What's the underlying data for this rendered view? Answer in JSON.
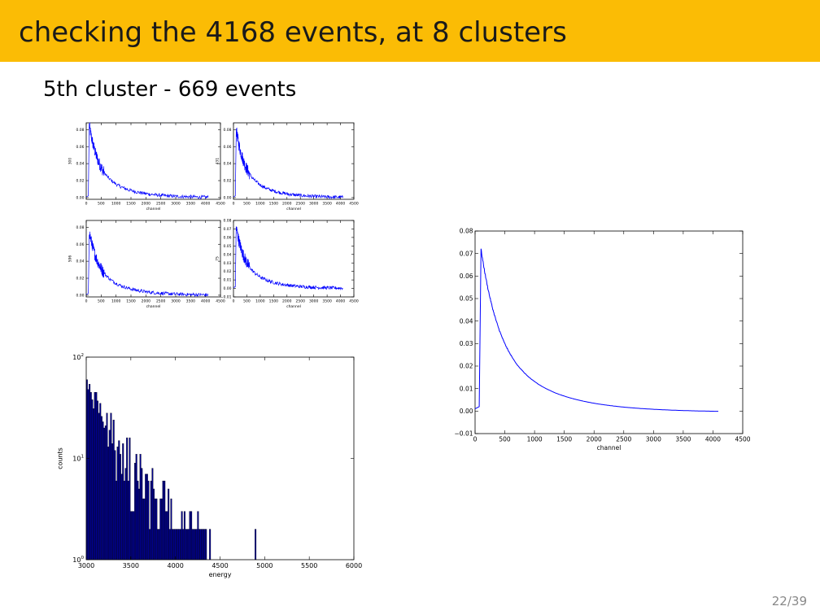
{
  "slide": {
    "title": "checking the 4168 events, at 8 clusters",
    "subtitle": "5th cluster - 669 events",
    "page_number": "22/39"
  },
  "colors": {
    "header": "#fbbc05",
    "trace": "#0000ff",
    "bar": "#00008b"
  },
  "chart_data": [
    {
      "type": "line",
      "panel": "small-top-left",
      "xlabel": "channel",
      "ylabel": "300",
      "xlim": [
        0,
        4500
      ],
      "ylim": [
        -0.002,
        0.088
      ],
      "xticks": [
        0,
        500,
        1000,
        1500,
        2000,
        2500,
        3000,
        3500,
        4000,
        4500
      ],
      "xtick_labels": [
        "0",
        "500",
        "1000",
        "1500",
        "2000",
        "2500",
        "3000",
        "3500",
        "4000",
        "4500"
      ],
      "yticks": [
        0.0,
        0.02,
        0.04,
        0.06,
        0.08
      ],
      "ytick_labels": [
        "0.00",
        "0.02",
        "0.04",
        "0.06",
        "0.08"
      ],
      "series": [
        {
          "peak": 0.085,
          "peak_x": 100,
          "end_x": 4100,
          "end_y": 0.0
        }
      ]
    },
    {
      "type": "line",
      "panel": "small-top-right",
      "xlabel": "channel",
      "ylabel": "431",
      "xlim": [
        0,
        4500
      ],
      "ylim": [
        -0.002,
        0.088
      ],
      "xticks": [
        0,
        500,
        1000,
        1500,
        2000,
        2500,
        3000,
        3500,
        4000,
        4500
      ],
      "xtick_labels": [
        "0",
        "500",
        "1000",
        "1500",
        "2000",
        "2500",
        "3000",
        "3500",
        "4000",
        "4500"
      ],
      "yticks": [
        0.0,
        0.02,
        0.04,
        0.06,
        0.08
      ],
      "ytick_labels": [
        "0.00",
        "0.02",
        "0.04",
        "0.06",
        "0.08"
      ],
      "series": [
        {
          "peak": 0.08,
          "peak_x": 100,
          "end_x": 4100,
          "end_y": 0.0
        }
      ]
    },
    {
      "type": "line",
      "panel": "small-bottom-left",
      "xlabel": "channel",
      "ylabel": "596",
      "xlim": [
        0,
        4500
      ],
      "ylim": [
        -0.002,
        0.088
      ],
      "xticks": [
        0,
        500,
        1000,
        1500,
        2000,
        2500,
        3000,
        3500,
        4000,
        4500
      ],
      "xtick_labels": [
        "0",
        "500",
        "1000",
        "1500",
        "2000",
        "2500",
        "3000",
        "3500",
        "4000",
        "4500"
      ],
      "yticks": [
        0.0,
        0.02,
        0.04,
        0.06,
        0.08
      ],
      "ytick_labels": [
        "0.00",
        "0.02",
        "0.04",
        "0.06",
        "0.08"
      ],
      "series": [
        {
          "peak": 0.075,
          "peak_x": 100,
          "end_x": 4100,
          "end_y": 0.0
        }
      ]
    },
    {
      "type": "line",
      "panel": "small-bottom-right",
      "xlabel": "channel",
      "ylabel": "75",
      "xlim": [
        0,
        4500
      ],
      "ylim": [
        -0.01,
        0.08
      ],
      "xticks": [
        0,
        500,
        1000,
        1500,
        2000,
        2500,
        3000,
        3500,
        4000,
        4500
      ],
      "xtick_labels": [
        "0",
        "500",
        "1000",
        "1500",
        "2000",
        "2500",
        "3000",
        "3500",
        "4000",
        "4500"
      ],
      "yticks": [
        -0.01,
        0.0,
        0.01,
        0.02,
        0.03,
        0.04,
        0.05,
        0.06,
        0.07,
        0.08
      ],
      "ytick_labels": [
        "−0.01",
        "0.00",
        "0.01",
        "0.02",
        "0.03",
        "0.04",
        "0.05",
        "0.06",
        "0.07",
        "0.08"
      ],
      "series": [
        {
          "peak": 0.072,
          "peak_x": 100,
          "end_x": 4100,
          "end_y": 0.0
        }
      ]
    },
    {
      "type": "bar",
      "panel": "histogram",
      "xlabel": "energy",
      "ylabel": "counts",
      "xlim": [
        3000,
        6000
      ],
      "ylim": [
        1,
        100
      ],
      "yscale": "log",
      "xticks": [
        3000,
        3500,
        4000,
        4500,
        5000,
        5500,
        6000
      ],
      "xtick_labels": [
        "3000",
        "3500",
        "4000",
        "4500",
        "5000",
        "5500",
        "6000"
      ],
      "yticks": [
        1,
        10,
        100
      ],
      "ytick_labels": [
        {
          "base": "10",
          "exp": "0"
        },
        {
          "base": "10",
          "exp": "1"
        },
        {
          "base": "10",
          "exp": "2"
        }
      ],
      "bin_width": 15,
      "values": [
        60,
        48,
        54,
        45,
        38,
        31,
        45,
        45,
        37,
        28,
        35,
        26,
        23,
        20,
        21,
        28,
        13,
        19,
        28,
        14,
        24,
        12,
        6,
        13,
        15,
        11,
        7,
        14,
        6,
        8,
        16,
        6,
        16,
        3,
        3,
        3,
        9,
        11,
        6,
        5,
        11,
        8,
        4,
        4,
        7,
        7,
        6,
        2,
        6,
        8,
        5,
        4,
        4,
        2,
        2,
        4,
        4,
        6,
        6,
        3,
        3,
        5,
        2,
        4,
        2,
        2,
        2,
        2,
        2,
        2,
        2,
        3,
        2,
        3,
        2,
        2,
        2,
        3,
        3,
        2,
        2,
        2,
        2,
        3,
        2,
        2,
        2,
        2,
        2,
        2,
        0,
        0,
        2,
        0,
        0,
        0,
        0,
        0,
        0,
        0,
        0,
        0,
        0,
        0,
        0,
        0,
        0,
        0,
        0,
        0,
        0,
        0,
        0,
        0,
        0,
        0,
        0,
        0,
        0,
        0,
        0,
        0,
        0,
        0,
        0,
        0,
        2
      ]
    },
    {
      "type": "line",
      "panel": "average",
      "xlabel": "channel",
      "ylabel": "",
      "xlim": [
        0,
        4500
      ],
      "ylim": [
        -0.01,
        0.08
      ],
      "xticks": [
        0,
        500,
        1000,
        1500,
        2000,
        2500,
        3000,
        3500,
        4000,
        4500
      ],
      "xtick_labels": [
        "0",
        "500",
        "1000",
        "1500",
        "2000",
        "2500",
        "3000",
        "3500",
        "4000",
        "4500"
      ],
      "yticks": [
        -0.01,
        0.0,
        0.01,
        0.02,
        0.03,
        0.04,
        0.05,
        0.06,
        0.07,
        0.08
      ],
      "ytick_labels": [
        "−0.01",
        "0.00",
        "0.01",
        "0.02",
        "0.03",
        "0.04",
        "0.05",
        "0.06",
        "0.07",
        "0.08"
      ],
      "series": [
        {
          "peak": 0.072,
          "peak_x": 100,
          "end_x": 4100,
          "end_y": -0.0005
        }
      ]
    }
  ]
}
